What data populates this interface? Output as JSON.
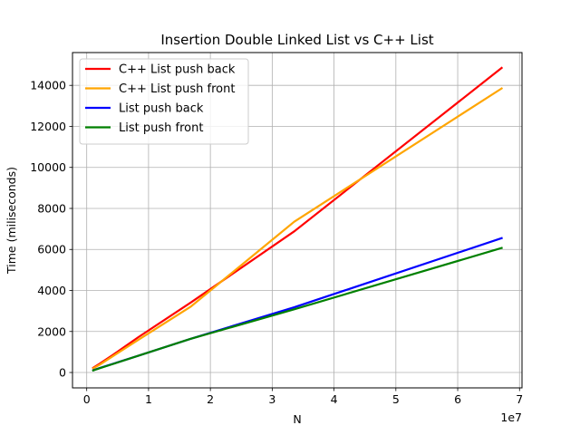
{
  "chart_data": {
    "type": "line",
    "title": "Insertion Double Linked List vs C++ List",
    "xlabel": "N",
    "ylabel": "Time (miliseconds)",
    "x_offset_label": "1e7",
    "xlim": [
      -2300000,
      70400000
    ],
    "ylim": [
      -750,
      15600
    ],
    "xticks": [
      0,
      10000000,
      20000000,
      30000000,
      40000000,
      50000000,
      60000000,
      70000000
    ],
    "xtick_labels": [
      "0",
      "1",
      "2",
      "3",
      "4",
      "5",
      "6",
      "7"
    ],
    "yticks": [
      0,
      2000,
      4000,
      6000,
      8000,
      10000,
      12000,
      14000
    ],
    "ytick_labels": [
      "0",
      "2000",
      "4000",
      "6000",
      "8000",
      "10000",
      "12000",
      "14000"
    ],
    "grid": true,
    "legend_position": "upper-left",
    "series": [
      {
        "name": "C++ List push back",
        "color": "#ff0000",
        "x": [
          1048576,
          2097152,
          4194304,
          8388608,
          16777216,
          33554432,
          67108864
        ],
        "y": [
          230,
          430,
          850,
          1730,
          3400,
          6880,
          14850
        ]
      },
      {
        "name": "C++ List push front",
        "color": "#ffa500",
        "x": [
          1048576,
          2097152,
          4194304,
          8388608,
          16777216,
          33554432,
          67108864
        ],
        "y": [
          200,
          380,
          790,
          1600,
          3200,
          7350,
          13850
        ]
      },
      {
        "name": "List push back",
        "color": "#0000ff",
        "x": [
          1048576,
          2097152,
          4194304,
          8388608,
          16777216,
          33554432,
          67108864
        ],
        "y": [
          110,
          220,
          420,
          820,
          1640,
          3180,
          6550
        ]
      },
      {
        "name": "List push front",
        "color": "#008000",
        "x": [
          1048576,
          2097152,
          4194304,
          8388608,
          16777216,
          33554432,
          67108864
        ],
        "y": [
          100,
          210,
          410,
          820,
          1640,
          3080,
          6070
        ]
      }
    ]
  }
}
